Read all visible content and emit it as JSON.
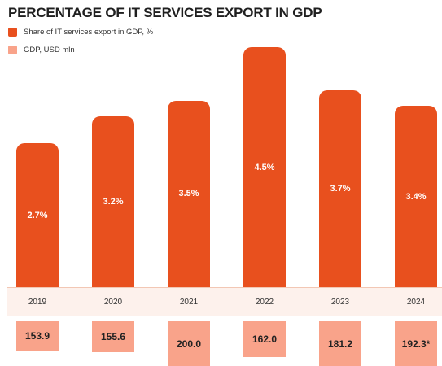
{
  "title": "PERCENTAGE OF IT SERVICES EXPORT IN GDP",
  "colors": {
    "share": "#e8501e",
    "gdp": "#f9a38a",
    "band": "#fdf1ec"
  },
  "legend": [
    {
      "label": "Share of IT services export in GDP, %",
      "color": "#e8501e"
    },
    {
      "label": "GDP, USD mln",
      "color": "#f9a38a"
    }
  ],
  "chart_data": {
    "type": "bar",
    "title": "PERCENTAGE OF IT SERVICES EXPORT IN GDP",
    "categories": [
      "2019",
      "2020",
      "2021",
      "2022",
      "2023",
      "2024"
    ],
    "series": [
      {
        "name": "Share of IT services export in GDP, %",
        "values": [
          2.7,
          3.2,
          3.5,
          4.5,
          3.7,
          3.4
        ],
        "labels": [
          "2.7%",
          "3.2%",
          "3.5%",
          "4.5%",
          "3.7%",
          "3.4%"
        ]
      },
      {
        "name": "GDP, USD mln",
        "values": [
          153.9,
          155.6,
          200.0,
          162.0,
          181.2,
          192.3
        ],
        "labels": [
          "153.9",
          "155.6",
          "200.0",
          "162.0",
          "181.2",
          "192.3*"
        ]
      }
    ]
  }
}
